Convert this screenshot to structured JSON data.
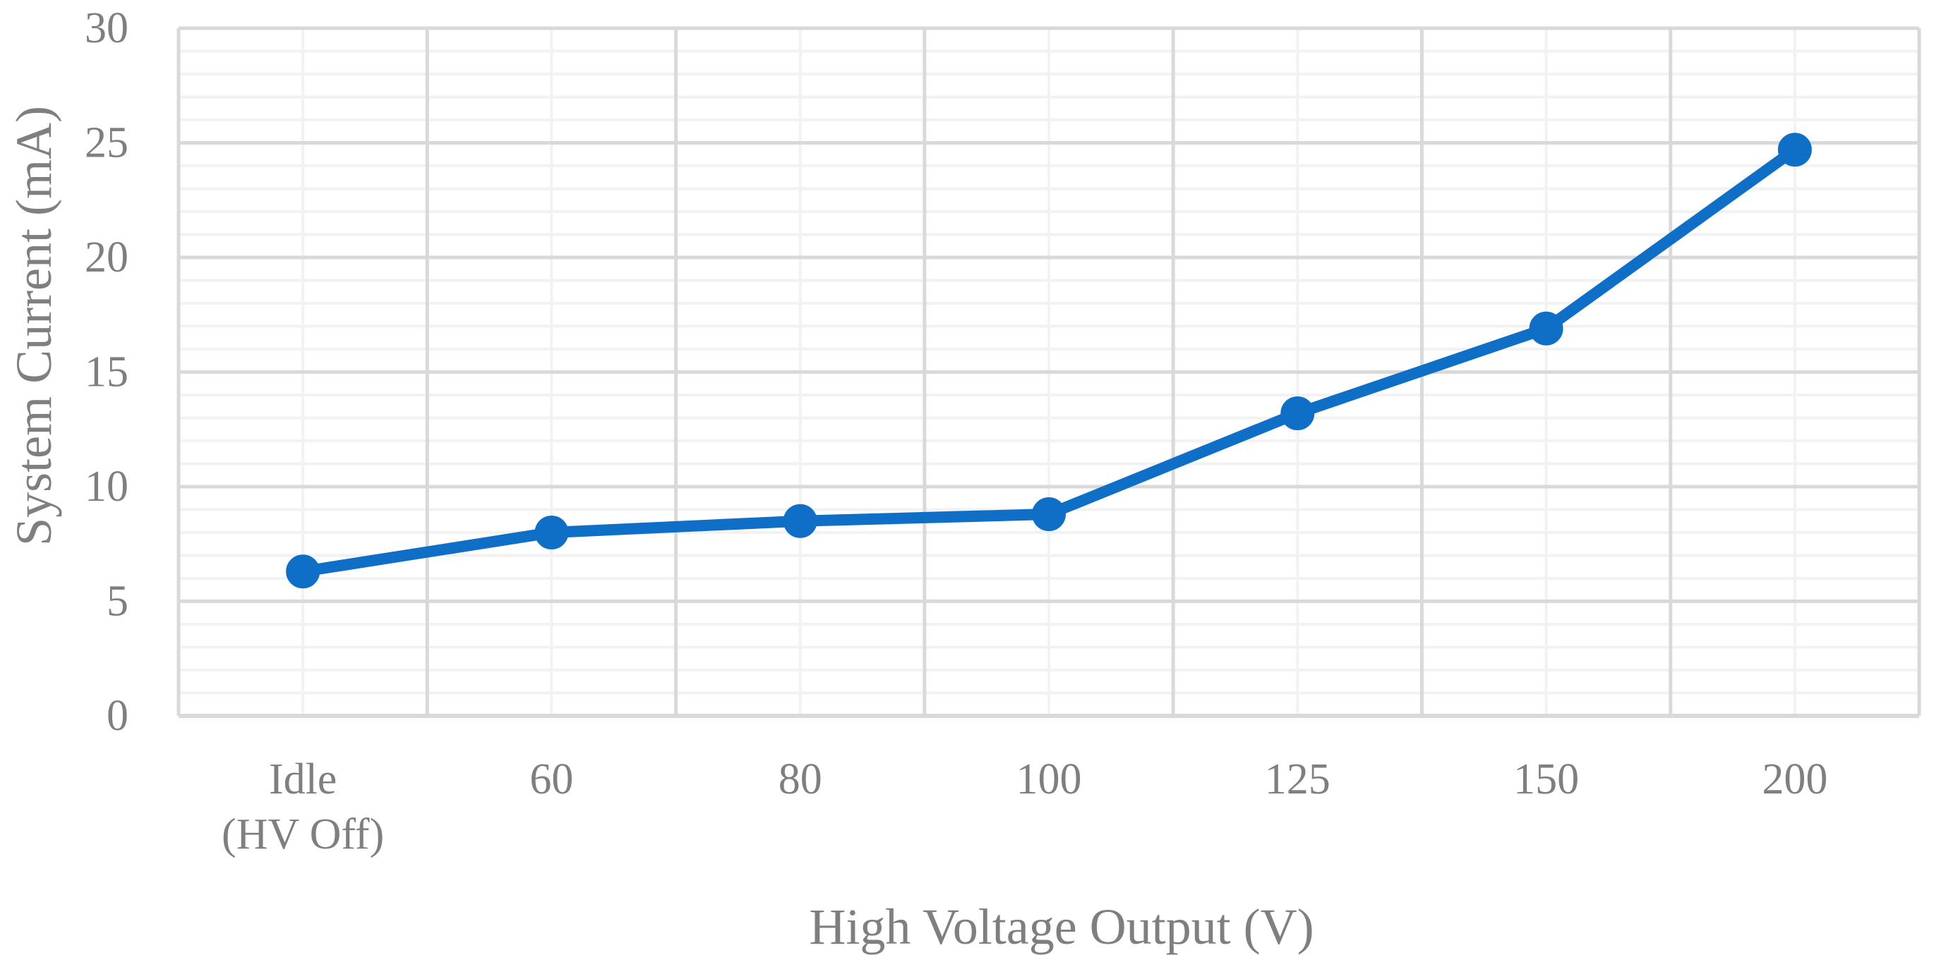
{
  "chart_data": {
    "type": "line",
    "title": "",
    "xlabel": "High Voltage Output (V)",
    "ylabel": "System Current (mA)",
    "categories": [
      [
        "Idle",
        "(HV Off)"
      ],
      [
        "60"
      ],
      [
        "80"
      ],
      [
        "100"
      ],
      [
        "125"
      ],
      [
        "150"
      ],
      [
        "200"
      ]
    ],
    "series": [
      {
        "values": [
          6.3,
          8.0,
          8.5,
          8.8,
          13.2,
          16.9,
          24.7
        ]
      }
    ],
    "ylim": [
      0,
      30
    ],
    "yticks": [
      0,
      5,
      10,
      15,
      20,
      25,
      30
    ],
    "grid": true,
    "legend": "none",
    "colors": {
      "series": "#0f6fc6",
      "major_grid": "#d9d9d9",
      "minor_grid": "#f2f2f2",
      "axis_text": "#7f7f7f"
    }
  }
}
